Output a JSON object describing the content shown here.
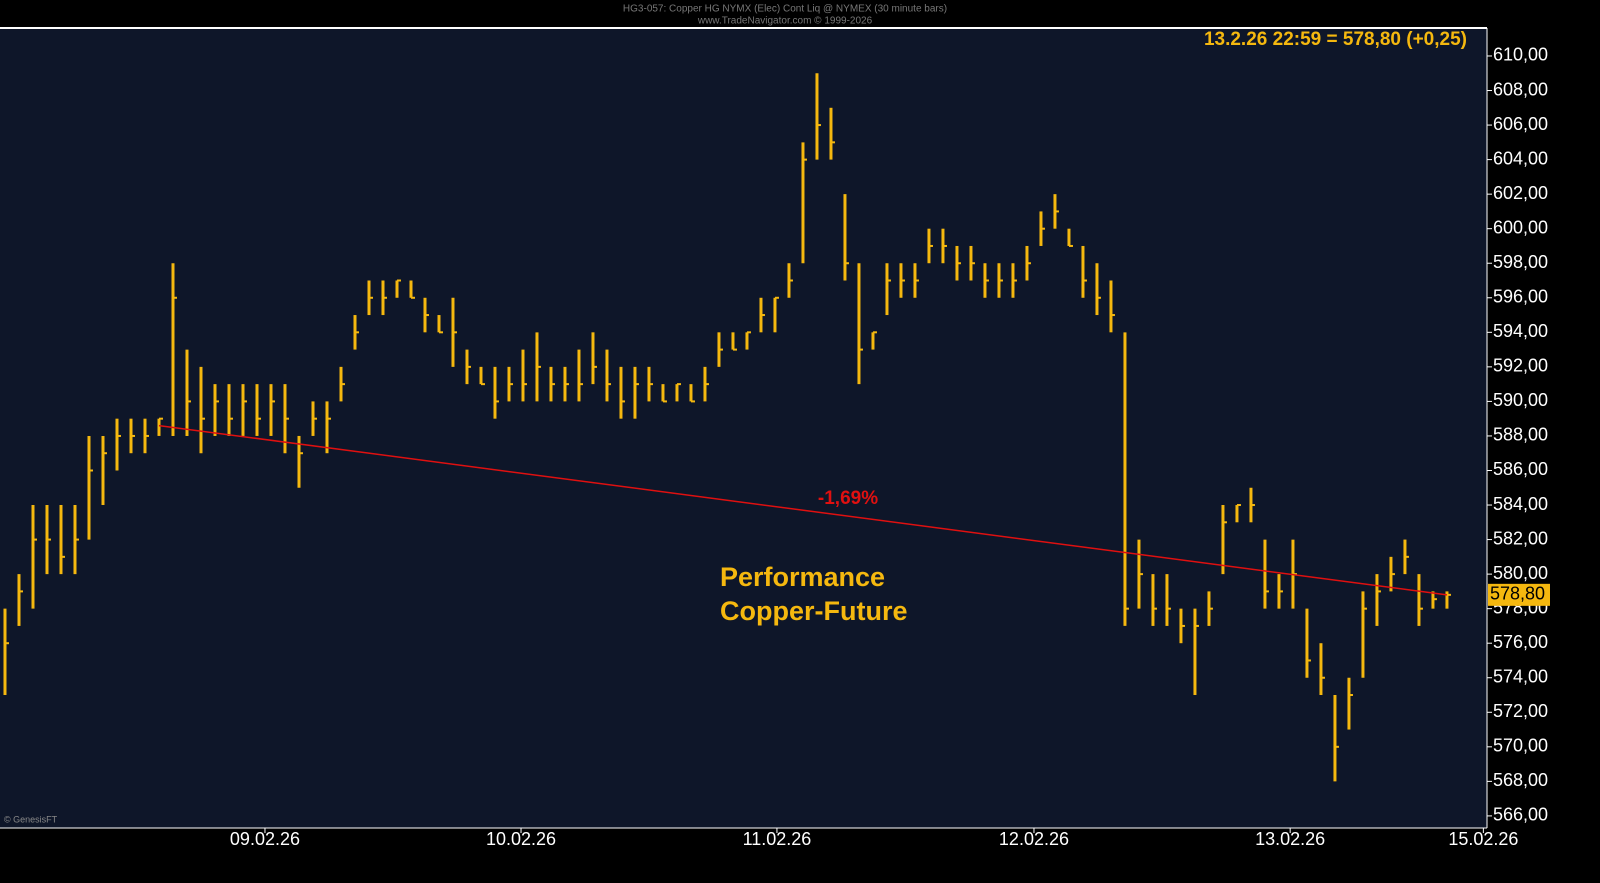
{
  "chart_data": {
    "type": "ohlc",
    "title": "HG3-057: Copper HG NYMX (Elec) Cont Liq @ NYMEX (30 minute bars)",
    "subtitle": "www.TradeNavigator.com © 1999-2026",
    "info_label": "13.2.26 22:59 = 578,80 (+0,25)",
    "last_label": "578,80",
    "annotations": [
      "-1,69%",
      "Performance",
      "Copper-Future"
    ],
    "credit": "© GenesisFT",
    "color": "#f5b80f",
    "x": [
      0,
      1,
      2,
      3,
      4,
      5,
      6,
      7,
      8,
      9,
      10,
      11,
      12,
      13,
      14,
      15,
      16,
      17,
      18,
      19,
      20,
      21,
      22,
      23,
      24,
      25,
      26,
      27,
      28,
      29,
      30,
      31,
      32,
      33,
      34,
      35,
      36,
      37,
      38,
      39,
      40,
      41,
      42,
      43,
      44,
      45,
      46,
      47,
      48,
      49,
      50,
      51,
      52,
      53,
      54,
      55,
      56,
      57,
      58,
      59,
      60,
      61,
      62,
      63,
      64,
      65,
      66,
      67,
      68,
      69,
      70,
      71,
      72,
      73,
      74,
      75,
      76,
      77,
      78,
      79,
      80,
      81,
      82,
      83,
      84,
      85,
      86,
      87,
      88,
      89,
      90,
      91,
      92,
      93,
      94,
      95,
      96,
      97,
      98,
      99,
      100,
      101,
      102,
      103
    ],
    "high": [
      578,
      580,
      584,
      584,
      584,
      584,
      588,
      588,
      589,
      589,
      589,
      589,
      598,
      593,
      592,
      591,
      591,
      591,
      591,
      591,
      591,
      588,
      590,
      590,
      592,
      595,
      597,
      597,
      597,
      597,
      596,
      595,
      596,
      593,
      592,
      592,
      592,
      593,
      594,
      592,
      592,
      593,
      594,
      593,
      592,
      592,
      592,
      591,
      591,
      591,
      592,
      594,
      594,
      594,
      596,
      596,
      598,
      605,
      609,
      607,
      602,
      598,
      594,
      598,
      598,
      598,
      600,
      600,
      599,
      599,
      598,
      598,
      598,
      599,
      601,
      602,
      600,
      599,
      598,
      597,
      594,
      582,
      580,
      580,
      578,
      578,
      579,
      584,
      584,
      585,
      582,
      580,
      582,
      578,
      576,
      573,
      574,
      579,
      580,
      581,
      582,
      580,
      579,
      579
    ],
    "low": [
      573,
      577,
      578,
      580,
      580,
      580,
      582,
      584,
      586,
      587,
      587,
      588,
      588,
      588,
      587,
      588,
      588,
      588,
      588,
      588,
      587,
      585,
      588,
      587,
      590,
      593,
      595,
      595,
      596,
      596,
      594,
      594,
      592,
      591,
      591,
      589,
      590,
      590,
      590,
      590,
      590,
      590,
      591,
      590,
      589,
      589,
      590,
      590,
      590,
      590,
      590,
      592,
      593,
      593,
      594,
      594,
      596,
      598,
      604,
      604,
      597,
      591,
      593,
      595,
      596,
      596,
      598,
      598,
      597,
      597,
      596,
      596,
      596,
      597,
      599,
      600,
      599,
      596,
      595,
      594,
      577,
      578,
      577,
      577,
      576,
      573,
      577,
      580,
      583,
      583,
      578,
      578,
      578,
      574,
      573,
      568,
      571,
      574,
      577,
      579,
      580,
      577,
      578,
      578
    ],
    "close": [
      576,
      579,
      582,
      582,
      581,
      582,
      586,
      587,
      588,
      588,
      588,
      589,
      596,
      590,
      589,
      590,
      589,
      590,
      589,
      590,
      589,
      587,
      589,
      589,
      591,
      594,
      596,
      596,
      597,
      596,
      595,
      594,
      594,
      592,
      591,
      590,
      591,
      591,
      592,
      591,
      591,
      591,
      592,
      591,
      590,
      591,
      591,
      590,
      591,
      590,
      591,
      593,
      593,
      594,
      595,
      596,
      597,
      604,
      606,
      605,
      598,
      593,
      594,
      597,
      597,
      597,
      599,
      599,
      598,
      598,
      597,
      597,
      597,
      598,
      600,
      601,
      599,
      597,
      596,
      595,
      578,
      580,
      578,
      578,
      577,
      577,
      578,
      583,
      584,
      584,
      579,
      579,
      580,
      575,
      574,
      570,
      573,
      578,
      579,
      580,
      581,
      578,
      578.55,
      578.8
    ],
    "trendline": {
      "x": [
        11,
        103
      ],
      "y": [
        588.6,
        578.8
      ],
      "color": "#e01010"
    },
    "xlim": [
      -0.357,
      105.86
    ],
    "xticks": [
      {
        "value": 18.57,
        "label": "09.02.26"
      },
      {
        "value": 36.86,
        "label": "10.02.26"
      },
      {
        "value": 55.14,
        "label": "11.02.26"
      },
      {
        "value": 73.5,
        "label": "12.02.26"
      },
      {
        "value": 91.8,
        "label": "13.02.26"
      },
      {
        "value": 105.6,
        "label": "15.02.26"
      }
    ],
    "ylim": [
      565.3,
      611.62
    ],
    "yticks": [
      {
        "value": 566,
        "label": "566,00"
      },
      {
        "value": 568,
        "label": "568,00"
      },
      {
        "value": 570,
        "label": "570,00"
      },
      {
        "value": 572,
        "label": "572,00"
      },
      {
        "value": 574,
        "label": "574,00"
      },
      {
        "value": 576,
        "label": "576,00"
      },
      {
        "value": 578,
        "label": "578,00"
      },
      {
        "value": 580,
        "label": "580,00"
      },
      {
        "value": 582,
        "label": "582,00"
      },
      {
        "value": 584,
        "label": "584,00"
      },
      {
        "value": 586,
        "label": "586,00"
      },
      {
        "value": 588,
        "label": "588,00"
      },
      {
        "value": 590,
        "label": "590,00"
      },
      {
        "value": 592,
        "label": "592,00"
      },
      {
        "value": 594,
        "label": "594,00"
      },
      {
        "value": 596,
        "label": "596,00"
      },
      {
        "value": 598,
        "label": "598,00"
      },
      {
        "value": 600,
        "label": "600,00"
      },
      {
        "value": 602,
        "label": "602,00"
      },
      {
        "value": 604,
        "label": "604,00"
      },
      {
        "value": 606,
        "label": "606,00"
      },
      {
        "value": 608,
        "label": "608,00"
      },
      {
        "value": 610,
        "label": "610,00"
      }
    ]
  }
}
